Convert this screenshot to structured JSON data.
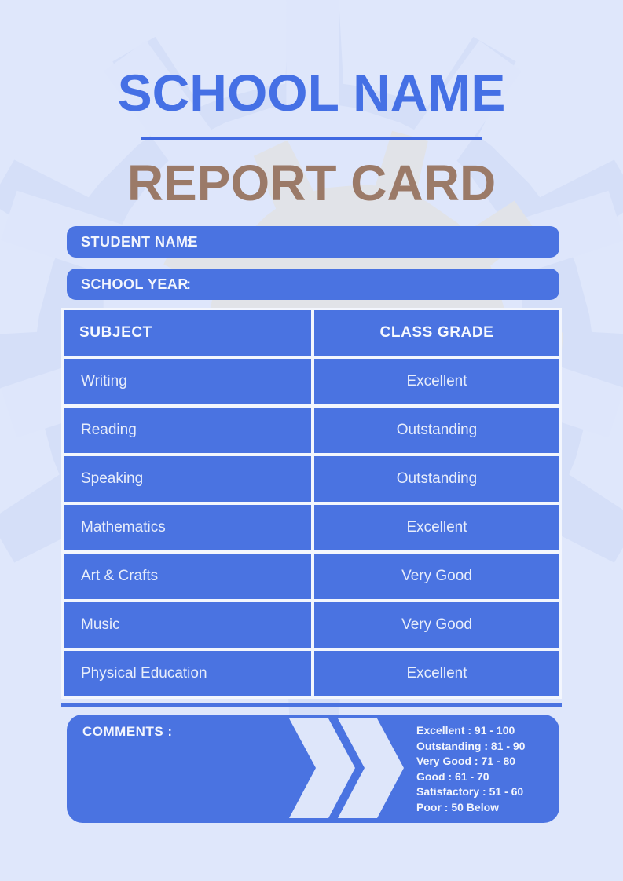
{
  "header": {
    "school_name": "SCHOOL NAME",
    "report_card": "REPORT CARD"
  },
  "fields": {
    "student_name_label": "STUDENT NAME",
    "student_name_colon": ":",
    "school_year_label": "SCHOOL YEAR",
    "school_year_colon": ":"
  },
  "table": {
    "headers": [
      "SUBJECT",
      "CLASS GRADE"
    ],
    "rows": [
      {
        "subject": "Writing",
        "grade": "Excellent"
      },
      {
        "subject": "Reading",
        "grade": "Outstanding"
      },
      {
        "subject": "Speaking",
        "grade": "Outstanding"
      },
      {
        "subject": "Mathematics",
        "grade": "Excellent"
      },
      {
        "subject": "Art & Crafts",
        "grade": "Very Good"
      },
      {
        "subject": "Music",
        "grade": "Very Good"
      },
      {
        "subject": "Physical Education",
        "grade": "Excellent"
      }
    ]
  },
  "comments": {
    "label": "COMMENTS :",
    "scale": [
      "Excellent : 91 - 100",
      "Outstanding : 81 - 90",
      "Very Good : 71 - 80",
      "Good : 61 - 70",
      "Satisfactory : 51 - 60",
      "Poor : 50 Below"
    ]
  },
  "icons": {
    "comments_arrow": "double-chevron-right"
  },
  "colors": {
    "primary_blue": "#4A73E1",
    "title_blue": "#4570E5",
    "divider_blue": "#4069E2",
    "subtitle_brown": "#9B7A68",
    "background": "#DFE7FB",
    "gear_dark": "#D5DFF8",
    "gear_light": "#DEE6FB",
    "gear_gray": "#E1E3E8",
    "gridline_white": "#F3F6FD"
  }
}
